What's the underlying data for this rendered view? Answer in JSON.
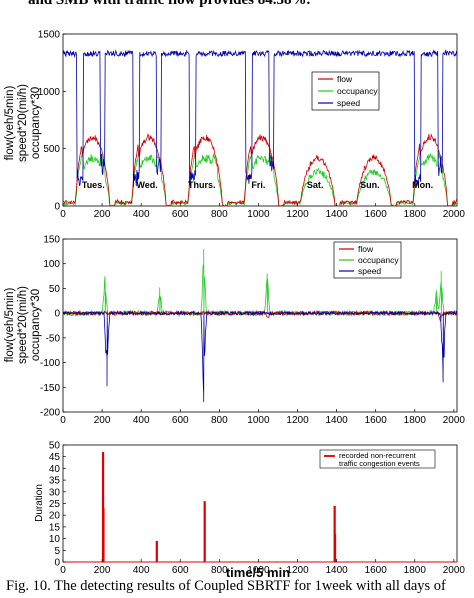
{
  "header_text": "and SMB with traffic flow provides 84.38%.",
  "caption": "Fig. 10.  The detecting results of Coupled SBRTF for 1week with all days of",
  "colors": {
    "flow": "#cc0000",
    "occupancy": "#22cc22",
    "speed": "#0000aa",
    "events": "#dd0000"
  },
  "chart_data": [
    {
      "type": "line",
      "ylabel_lines": [
        "flow(veh/5min)",
        "speed*20(mi/h)",
        "occupancy*30"
      ],
      "xlim": [
        0,
        2016
      ],
      "ylim": [
        0,
        1500
      ],
      "xticks": [
        0,
        200,
        400,
        600,
        800,
        1000,
        1200,
        1400,
        1600,
        1800,
        2000
      ],
      "yticks": [
        0,
        500,
        1000,
        1500
      ],
      "legend_position": "right",
      "day_labels": [
        {
          "label": "Tues.",
          "x": 155
        },
        {
          "label": "Wed.",
          "x": 430
        },
        {
          "label": "Thurs.",
          "x": 710
        },
        {
          "label": "Fri.",
          "x": 1000
        },
        {
          "label": "Sat.",
          "x": 1290
        },
        {
          "label": "Sun.",
          "x": 1570
        },
        {
          "label": "Mon.",
          "x": 1840
        }
      ],
      "series": [
        {
          "name": "flow",
          "typical_day_peak": 600
        },
        {
          "name": "occupancy",
          "typical_day_peak": 420
        },
        {
          "name": "speed",
          "free_flow_level": 1330,
          "dip_level": 180
        }
      ]
    },
    {
      "type": "line",
      "ylabel_lines": [
        "flow(veh/5min)",
        "speed*20(mi/h)",
        "occupancy*30"
      ],
      "xlim": [
        0,
        2016
      ],
      "ylim": [
        -200,
        150
      ],
      "xticks": [
        0,
        200,
        400,
        600,
        800,
        1000,
        1200,
        1400,
        1600,
        1800,
        2000
      ],
      "yticks": [
        -200,
        -150,
        -100,
        -50,
        0,
        50,
        100,
        150
      ],
      "legend_position": "top-right",
      "series": [
        {
          "name": "flow",
          "spikes": [
            {
              "x": 1050,
              "y": -10
            },
            {
              "x": 1930,
              "y": -15
            }
          ]
        },
        {
          "name": "occupancy",
          "spikes": [
            {
              "x": 215,
              "y": 75
            },
            {
              "x": 495,
              "y": 52
            },
            {
              "x": 720,
              "y": 130
            },
            {
              "x": 1045,
              "y": 80
            },
            {
              "x": 1910,
              "y": 45
            },
            {
              "x": 1935,
              "y": 85
            }
          ]
        },
        {
          "name": "speed",
          "spikes": [
            {
              "x": 225,
              "y": -148
            },
            {
              "x": 720,
              "y": -180
            },
            {
              "x": 1945,
              "y": -140
            }
          ]
        }
      ]
    },
    {
      "type": "bar",
      "xlabel": "time/5 min",
      "ylabel": "Duration",
      "xlim": [
        0,
        2016
      ],
      "ylim": [
        0,
        50
      ],
      "xticks": [
        0,
        200,
        400,
        600,
        800,
        1000,
        1200,
        1400,
        1600,
        1800,
        2000
      ],
      "yticks": [
        0,
        5,
        10,
        15,
        20,
        25,
        30,
        35,
        40,
        45,
        50
      ],
      "legend_position": "top-right",
      "series": [
        {
          "name": "recorded non-recurrent traffic congestion events",
          "legend_lines": [
            "recorded non-recurrent",
            "traffic congestion events"
          ],
          "points": [
            {
              "x": 205,
              "y": 47
            },
            {
              "x": 207,
              "y": 23
            },
            {
              "x": 480,
              "y": 9
            },
            {
              "x": 725,
              "y": 26
            },
            {
              "x": 1390,
              "y": 24
            },
            {
              "x": 1392,
              "y": 12
            }
          ]
        }
      ]
    }
  ]
}
